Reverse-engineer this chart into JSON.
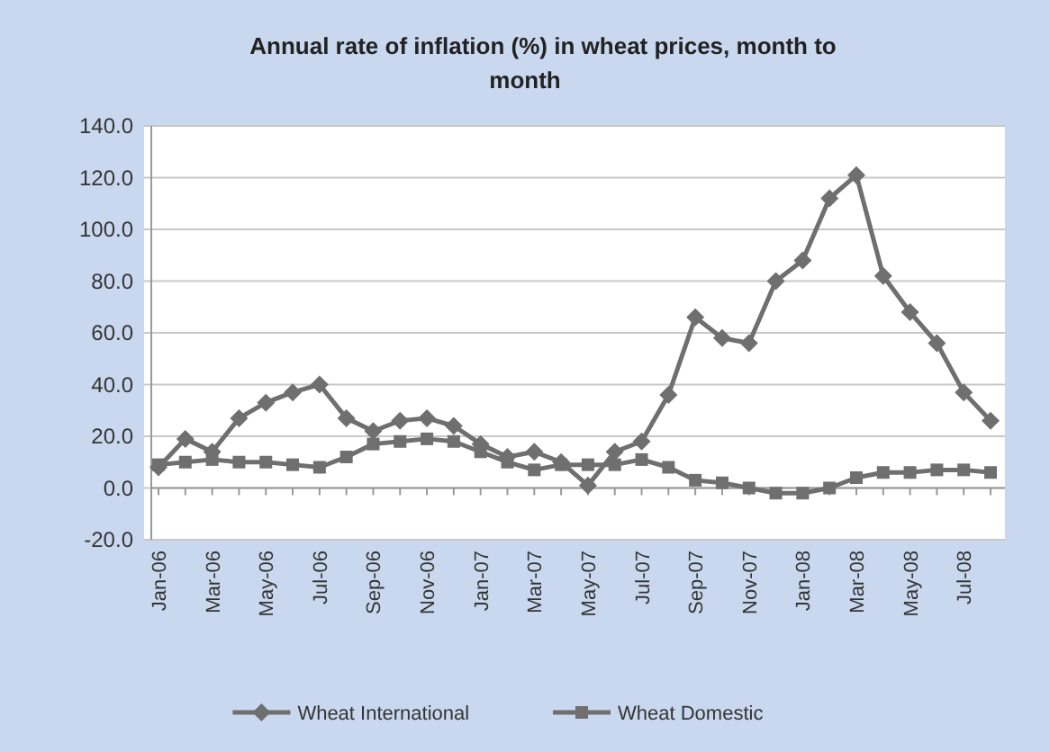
{
  "chart_data": {
    "type": "line",
    "title": "Annual rate of inflation (%) in wheat prices, month to month",
    "categories": [
      "Jan-06",
      null,
      "Mar-06",
      null,
      "May-06",
      null,
      "Jul-06",
      null,
      "Sep-06",
      null,
      "Nov-06",
      null,
      "Jan-07",
      null,
      "Mar-07",
      null,
      "May-07",
      null,
      "Jul-07",
      null,
      "Sep-07",
      null,
      "Nov-07",
      null,
      "Jan-08",
      null,
      "Mar-08",
      null,
      "May-08",
      null,
      "Jul-08",
      null
    ],
    "series": [
      {
        "name": "Wheat International",
        "color": "#6f6f6f",
        "marker": "diamond",
        "values": [
          8,
          19,
          14,
          27,
          33,
          37,
          40,
          27,
          22,
          26,
          27,
          24,
          17,
          12,
          14,
          10,
          1,
          14,
          18,
          36,
          66,
          58,
          56,
          80,
          88,
          112,
          121,
          82,
          68,
          56,
          37,
          26
        ]
      },
      {
        "name": "Wheat Domestic",
        "color": "#6f6f6f",
        "marker": "square",
        "values": [
          9,
          10,
          11,
          10,
          10,
          9,
          8,
          12,
          17,
          18,
          19,
          18,
          14,
          10,
          7,
          9,
          9,
          9,
          11,
          8,
          3,
          2,
          0,
          -2,
          -2,
          0,
          4,
          6,
          6,
          7,
          7,
          6
        ]
      }
    ],
    "ylim": [
      -20,
      140
    ],
    "yticks": [
      {
        "value": -20,
        "label": "-20.0"
      },
      {
        "value": 0,
        "label": "0.0"
      },
      {
        "value": 20,
        "label": "20.0"
      },
      {
        "value": 40,
        "label": "40.0"
      },
      {
        "value": 60,
        "label": "60.0"
      },
      {
        "value": 80,
        "label": "80.0"
      },
      {
        "value": 100,
        "label": "100.0"
      },
      {
        "value": 120,
        "label": "120.0"
      },
      {
        "value": 140,
        "label": "140.0"
      }
    ],
    "grid": "y",
    "legend": "bottom"
  }
}
